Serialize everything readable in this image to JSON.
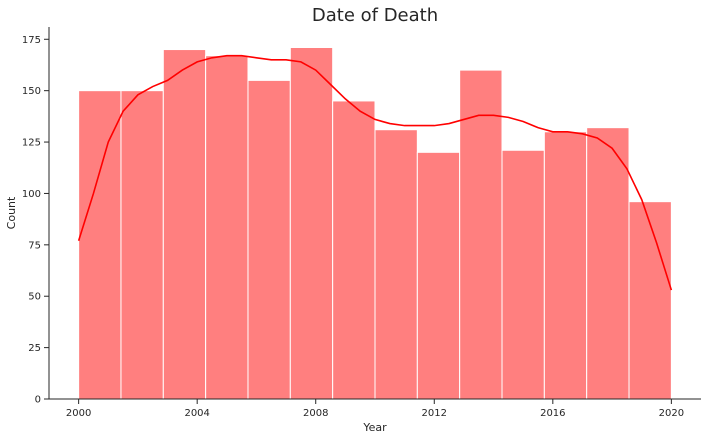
{
  "chart_data": {
    "type": "bar",
    "subtype": "histogram-with-kde",
    "title": "Date of Death",
    "xlabel": "Year",
    "ylabel": "Count",
    "xlim": [
      1999,
      2021
    ],
    "ylim": [
      0,
      180
    ],
    "xticks": [
      2000,
      2004,
      2008,
      2012,
      2016,
      2020
    ],
    "yticks": [
      0,
      25,
      50,
      75,
      100,
      125,
      150,
      175
    ],
    "bin_start": 2000,
    "bin_end": 2020,
    "values": [
      150,
      150,
      170,
      167,
      155,
      171,
      145,
      131,
      120,
      160,
      121,
      130,
      132,
      96
    ],
    "bar_color": "#ff7f7f",
    "kde_color": "#ff0000",
    "kde": {
      "x": [
        2000,
        2000.5,
        2001,
        2001.5,
        2002,
        2002.5,
        2003,
        2003.5,
        2004,
        2004.5,
        2005,
        2005.5,
        2006,
        2006.5,
        2007,
        2007.5,
        2008,
        2008.5,
        2009,
        2009.5,
        2010,
        2010.5,
        2011,
        2011.5,
        2012,
        2012.5,
        2013,
        2013.5,
        2014,
        2014.5,
        2015,
        2015.5,
        2016,
        2016.5,
        2017,
        2017.5,
        2018,
        2018.5,
        2019,
        2019.5,
        2020
      ],
      "y": [
        77,
        100,
        125,
        140,
        148,
        152,
        155,
        160,
        164,
        166,
        167,
        167,
        166,
        165,
        165,
        164,
        160,
        153,
        146,
        140,
        136,
        134,
        133,
        133,
        133,
        134,
        136,
        138,
        138,
        137,
        135,
        132,
        130,
        130,
        129,
        127,
        122,
        112,
        97,
        76,
        53
      ]
    },
    "grid": false,
    "legend": "none"
  }
}
